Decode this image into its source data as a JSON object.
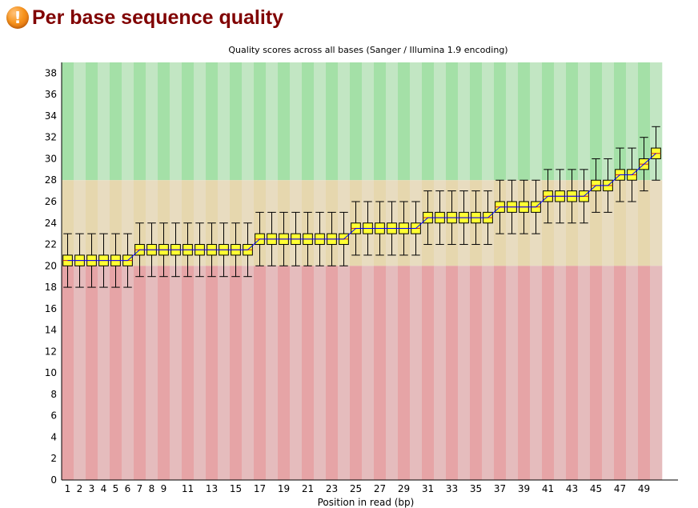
{
  "header": {
    "title": "Per base sequence quality",
    "icon": "warning-icon"
  },
  "colors": {
    "title": "#800000",
    "band_good": [
      "#a4e0a7",
      "#c2e6c3"
    ],
    "band_warn": [
      "#e6d7ae",
      "#e8dcc0"
    ],
    "band_bad": [
      "#e6a4a6",
      "#e5bcbd"
    ],
    "box_fill": "#ffff33",
    "mean_line": "#0000ff"
  },
  "chart_data": {
    "type": "box",
    "title": "Quality scores across all bases (Sanger / Illumina 1.9 encoding)",
    "xlabel": "Position in read (bp)",
    "ylabel": "",
    "ylim": [
      0,
      39
    ],
    "yticks": [
      0,
      2,
      4,
      6,
      8,
      10,
      12,
      14,
      16,
      18,
      20,
      22,
      24,
      26,
      28,
      30,
      32,
      34,
      36,
      38
    ],
    "xticks": [
      "1",
      "2",
      "3",
      "4",
      "5",
      "6",
      "7",
      "8",
      "9",
      "11",
      "13",
      "15",
      "17",
      "19",
      "21",
      "23",
      "25",
      "27",
      "29",
      "31",
      "33",
      "35",
      "37",
      "39",
      "41",
      "43",
      "45",
      "47",
      "49"
    ],
    "quality_bands": [
      {
        "name": "good",
        "from": 28,
        "to": 39
      },
      {
        "name": "reasonable",
        "from": 20,
        "to": 28
      },
      {
        "name": "poor",
        "from": 0,
        "to": 20
      }
    ],
    "positions": [
      1,
      2,
      3,
      4,
      5,
      6,
      7,
      8,
      9,
      10,
      11,
      12,
      13,
      14,
      15,
      16,
      17,
      18,
      19,
      20,
      21,
      22,
      23,
      24,
      25,
      26,
      27,
      28,
      29,
      30,
      31,
      32,
      33,
      34,
      35,
      36,
      37,
      38,
      39,
      40,
      41,
      42,
      43,
      44,
      45,
      46,
      47,
      48,
      49,
      50
    ],
    "median": [
      20.5,
      20.5,
      20.5,
      20.5,
      20.5,
      20.5,
      21.5,
      21.5,
      21.5,
      21.5,
      21.5,
      21.5,
      21.5,
      21.5,
      21.5,
      21.5,
      22.5,
      22.5,
      22.5,
      22.5,
      22.5,
      22.5,
      22.5,
      22.5,
      23.5,
      23.5,
      23.5,
      23.5,
      23.5,
      23.5,
      24.5,
      24.5,
      24.5,
      24.5,
      24.5,
      24.5,
      25.5,
      25.5,
      25.5,
      25.5,
      26.5,
      26.5,
      26.5,
      26.5,
      27.5,
      27.5,
      28.5,
      28.5,
      29.5,
      30.5
    ],
    "q1": [
      20,
      20,
      20,
      20,
      20,
      20,
      21,
      21,
      21,
      21,
      21,
      21,
      21,
      21,
      21,
      21,
      22,
      22,
      22,
      22,
      22,
      22,
      22,
      22,
      23,
      23,
      23,
      23,
      23,
      23,
      24,
      24,
      24,
      24,
      24,
      24,
      25,
      25,
      25,
      25,
      26,
      26,
      26,
      26,
      27,
      27,
      28,
      28,
      29,
      30
    ],
    "q3": [
      21,
      21,
      21,
      21,
      21,
      21,
      22,
      22,
      22,
      22,
      22,
      22,
      22,
      22,
      22,
      22,
      23,
      23,
      23,
      23,
      23,
      23,
      23,
      23,
      24,
      24,
      24,
      24,
      24,
      24,
      25,
      25,
      25,
      25,
      25,
      25,
      26,
      26,
      26,
      26,
      27,
      27,
      27,
      27,
      28,
      28,
      29,
      29,
      30,
      31
    ],
    "whisker_low": [
      18,
      18,
      18,
      18,
      18,
      18,
      19,
      19,
      19,
      19,
      19,
      19,
      19,
      19,
      19,
      19,
      20,
      20,
      20,
      20,
      20,
      20,
      20,
      20,
      21,
      21,
      21,
      21,
      21,
      21,
      22,
      22,
      22,
      22,
      22,
      22,
      23,
      23,
      23,
      23,
      24,
      24,
      24,
      24,
      25,
      25,
      26,
      26,
      27,
      28
    ],
    "whisker_high": [
      23,
      23,
      23,
      23,
      23,
      23,
      24,
      24,
      24,
      24,
      24,
      24,
      24,
      24,
      24,
      24,
      25,
      25,
      25,
      25,
      25,
      25,
      25,
      25,
      26,
      26,
      26,
      26,
      26,
      26,
      27,
      27,
      27,
      27,
      27,
      27,
      28,
      28,
      28,
      28,
      29,
      29,
      29,
      29,
      30,
      30,
      31,
      31,
      32,
      33
    ],
    "mean": [
      20.5,
      20.5,
      20.5,
      20.5,
      20.5,
      20.5,
      21.5,
      21.5,
      21.5,
      21.5,
      21.5,
      21.5,
      21.5,
      21.5,
      21.5,
      21.5,
      22.5,
      22.5,
      22.5,
      22.5,
      22.5,
      22.5,
      22.5,
      22.5,
      23.5,
      23.5,
      23.5,
      23.5,
      23.5,
      23.5,
      24.5,
      24.5,
      24.5,
      24.5,
      24.5,
      24.5,
      25.5,
      25.5,
      25.5,
      25.5,
      26.5,
      26.5,
      26.5,
      26.5,
      27.5,
      27.5,
      28.5,
      28.5,
      29.5,
      30.5
    ]
  }
}
